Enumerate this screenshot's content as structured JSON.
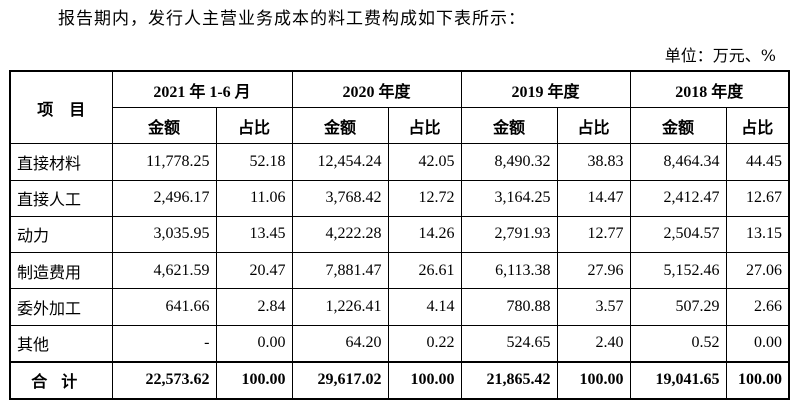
{
  "intro": "报告期内，发行人主营业务成本的料工费构成如下表所示：",
  "unit": "单位：万元、%",
  "table": {
    "item_header": "项　目",
    "periods": [
      "2021 年 1-6 月",
      "2020 年度",
      "2019 年度",
      "2018 年度"
    ],
    "sub_amount": "金额",
    "sub_ratio": "占比",
    "rows": [
      {
        "label": "直接材料",
        "values": [
          "11,778.25",
          "52.18",
          "12,454.24",
          "42.05",
          "8,490.32",
          "38.83",
          "8,464.34",
          "44.45"
        ]
      },
      {
        "label": "直接人工",
        "values": [
          "2,496.17",
          "11.06",
          "3,768.42",
          "12.72",
          "3,164.25",
          "14.47",
          "2,412.47",
          "12.67"
        ]
      },
      {
        "label": "动力",
        "values": [
          "3,035.95",
          "13.45",
          "4,222.28",
          "14.26",
          "2,791.93",
          "12.77",
          "2,504.57",
          "13.15"
        ]
      },
      {
        "label": "制造费用",
        "values": [
          "4,621.59",
          "20.47",
          "7,881.47",
          "26.61",
          "6,113.38",
          "27.96",
          "5,152.46",
          "27.06"
        ]
      },
      {
        "label": "委外加工",
        "values": [
          "641.66",
          "2.84",
          "1,226.41",
          "4.14",
          "780.88",
          "3.57",
          "507.29",
          "2.66"
        ]
      },
      {
        "label": "其他",
        "values": [
          "-",
          "0.00",
          "64.20",
          "0.22",
          "524.65",
          "2.40",
          "0.52",
          "0.00"
        ]
      }
    ],
    "total": {
      "label": "合计",
      "values": [
        "22,573.62",
        "100.00",
        "29,617.02",
        "100.00",
        "21,865.42",
        "100.00",
        "19,041.65",
        "100.00"
      ]
    }
  }
}
